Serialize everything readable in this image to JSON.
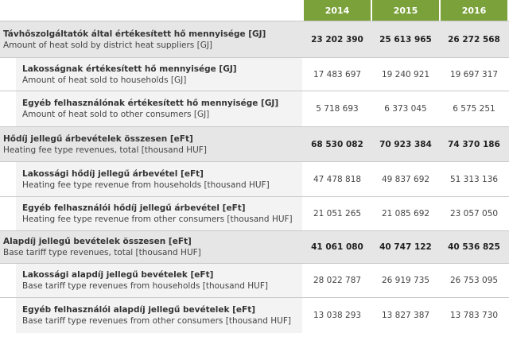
{
  "header": {
    "years": [
      "2014",
      "2015",
      "2016"
    ]
  },
  "rows": [
    {
      "type": "total",
      "hu": "Távhőszolgáltatók által értékesített hő mennyisége [GJ]",
      "en": "Amount of heat sold by district heat suppliers [GJ]",
      "values": [
        "23 202 390",
        "25 613 965",
        "26 272 568"
      ]
    },
    {
      "type": "sub",
      "hu": "Lakosságnak értékesített hő mennyisége [GJ]",
      "en": "Amount of heat sold to households [GJ]",
      "values": [
        "17 483 697",
        "19 240 921",
        "19 697 317"
      ]
    },
    {
      "type": "sub",
      "hu": "Egyéb felhasználónak értékesített hő mennyisége [GJ]",
      "en": "Amount of heat sold to other consumers [GJ]",
      "values": [
        "5 718 693",
        "6 373 045",
        "6 575 251"
      ]
    },
    {
      "type": "total",
      "hu": "Hődíj jellegű árbevételek összesen [eFt]",
      "en": "Heating fee type revenues, total [thousand HUF]",
      "values": [
        "68 530 082",
        "70 923 384",
        "74 370 186"
      ]
    },
    {
      "type": "sub",
      "hu": "Lakossági hődíj jellegű árbevétel [eFt]",
      "en": "Heating fee type revenue from households [thousand HUF]",
      "values": [
        "47 478 818",
        "49 837 692",
        "51 313 136"
      ]
    },
    {
      "type": "sub",
      "hu": "Egyéb felhasználói hődíj jellegű árbevétel [eFt]",
      "en": "Heating fee type revenue from other consumers [thousand HUF]",
      "values": [
        "21 051 265",
        "21 085 692",
        "23 057 050"
      ]
    },
    {
      "type": "total",
      "hu": "Alapdíj jellegű bevételek összesen [eFt]",
      "en": "Base tariff type revenues, total [thousand HUF]",
      "values": [
        "41 061 080",
        "40 747 122",
        "40 536 825"
      ]
    },
    {
      "type": "sub",
      "hu": "Lakossági alapdíj jellegű bevételek [eFt]",
      "en": "Base tariff type revenues from households [thousand HUF]",
      "values": [
        "28 022 787",
        "26 919 735",
        "26 753 095"
      ]
    },
    {
      "type": "sub",
      "hu": "Egyéb felhasználói alapdíj jellegű bevételek [eFt]",
      "en": "Base tariff type revenues from other consumers [thousand HUF]",
      "values": [
        "13 038 293",
        "13 827 387",
        "13 783 730"
      ]
    }
  ]
}
